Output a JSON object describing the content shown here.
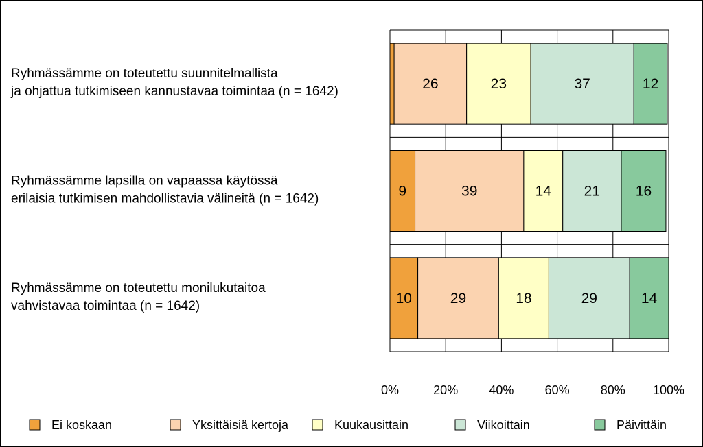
{
  "chart_data": {
    "type": "bar",
    "orientation": "horizontal",
    "stacked": true,
    "percent": true,
    "categories": [
      [
        "Ryhmässämme on toteutettu suunnitelmallista",
        "ja ohjattua tutkimiseen kannustavaa toimintaa (n = 1642)"
      ],
      [
        "Ryhmässämme lapsilla on vapaassa käytössä",
        "erilaisia tutkimisen mahdollistavia välineitä (n = 1642)"
      ],
      [
        "Ryhmässämme on toteutettu monilukutaitoa",
        "vahvistavaa toimintaa (n = 1642)"
      ]
    ],
    "series": [
      {
        "name": "Ei koskaan",
        "color": "#f0a13c",
        "values": [
          1.5,
          9,
          10
        ],
        "labels": [
          "",
          "9",
          "10"
        ]
      },
      {
        "name": "Yksittäisiä kertoja",
        "color": "#fbd3b0",
        "values": [
          26,
          39,
          29
        ],
        "labels": [
          "26",
          "39",
          "29"
        ]
      },
      {
        "name": "Kuukausittain",
        "color": "#ffffc6",
        "values": [
          23,
          14,
          18
        ],
        "labels": [
          "23",
          "14",
          "18"
        ]
      },
      {
        "name": "Viikoittain",
        "color": "#cbe6d6",
        "values": [
          37,
          21,
          29
        ],
        "labels": [
          "37",
          "21",
          "29"
        ]
      },
      {
        "name": "Päivittäin",
        "color": "#88c99d",
        "values": [
          12,
          16,
          14
        ],
        "labels": [
          "12",
          "16",
          "14"
        ]
      }
    ],
    "xaxis": {
      "range": [
        0,
        100
      ],
      "ticks": [
        0,
        20,
        40,
        60,
        80,
        100
      ],
      "tick_labels": [
        "0%",
        "20%",
        "40%",
        "60%",
        "80%",
        "100%"
      ]
    },
    "grid": true,
    "legend": "bottom",
    "title": "",
    "xlabel": "",
    "ylabel": ""
  }
}
